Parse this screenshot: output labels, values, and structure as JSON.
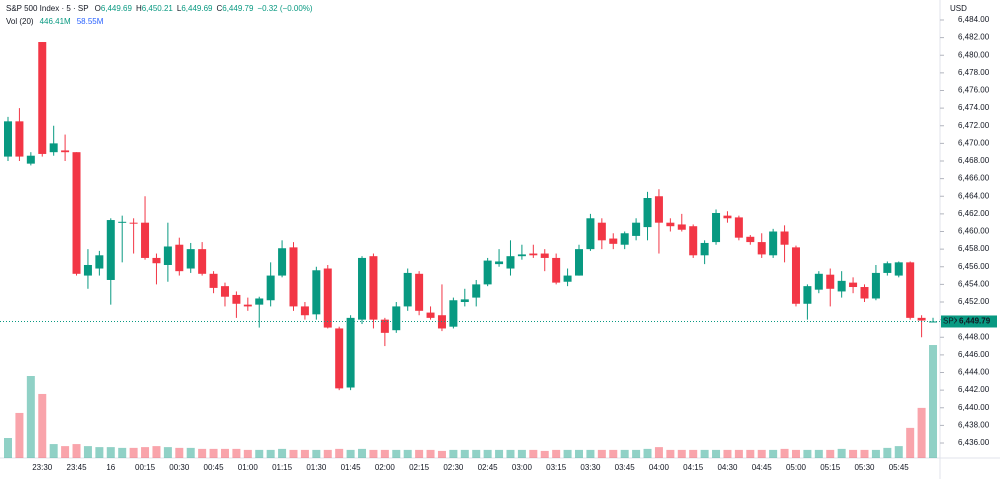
{
  "chart_data": {
    "type": "candlestick",
    "header": {
      "title": "S&P 500 Index · 5 · SP",
      "fields": [
        {
          "key": "O",
          "value": "6,449.69"
        },
        {
          "key": "H",
          "value": "6,450.21"
        },
        {
          "key": "L",
          "value": "6,449.69"
        },
        {
          "key": "C",
          "value": "6,449.79"
        }
      ],
      "change": "−0.32 (−0.00%)",
      "volume_label": "Vol (20)",
      "volume_values": [
        "446.41M",
        "58.55M"
      ]
    },
    "currency": "USD",
    "symbol_tag": "SPX",
    "last_price_label": "6,449.79",
    "up_color": "#089981",
    "down_color": "#f23645",
    "categories": [
      null,
      null,
      null,
      "23:30",
      null,
      null,
      "23:45",
      null,
      null,
      "16",
      null,
      null,
      "00:15",
      null,
      null,
      "00:30",
      null,
      null,
      "00:45",
      null,
      null,
      "01:00",
      null,
      null,
      "01:15",
      null,
      null,
      "01:30",
      null,
      null,
      "01:45",
      null,
      null,
      "02:00",
      null,
      null,
      "02:15",
      null,
      null,
      "02:30",
      null,
      null,
      "02:45",
      null,
      null,
      "03:00",
      null,
      null,
      "03:15",
      null,
      null,
      "03:30",
      null,
      null,
      "03:45",
      null,
      null,
      "04:00",
      null,
      null,
      "04:15",
      null,
      null,
      "04:30",
      null,
      null,
      "04:45",
      null,
      null,
      "05:00",
      null,
      null,
      "05:15",
      null,
      null,
      "05:30",
      null,
      null,
      "05:45",
      null,
      null,
      null
    ],
    "open": [
      6468.5,
      6472.5,
      6467.7,
      6481.5,
      6469,
      6469.2,
      6469,
      6455,
      6455.8,
      6454.5,
      6461,
      6461,
      6461,
      6457,
      6456.2,
      6458.5,
      6455.8,
      6458,
      6455.2,
      6453.8,
      6452.8,
      6451.7,
      6451.7,
      6452.2,
      6455,
      6458.2,
      6451.5,
      6450.6,
      6455.8,
      6449,
      6442.3,
      6450,
      6457.2,
      6450,
      6448.8,
      6451.5,
      6455.2,
      6450.8,
      6450.5,
      6449.2,
      6452,
      6452.5,
      6454,
      6456.3,
      6455.8,
      6457.2,
      6457.5,
      6457.5,
      6457,
      6454.3,
      6455,
      6458,
      6461,
      6459.2,
      6458.5,
      6459.5,
      6460.5,
      6464,
      6461,
      6460.8,
      6460.6,
      6457.3,
      6458.8,
      6461.8,
      6461.6,
      6459.4,
      6458.8,
      6457.3,
      6460,
      6458.2,
      6451.8,
      6453.4,
      6455.1,
      6453.2,
      6454.2,
      6453.7,
      6452.4,
      6455.3,
      6455,
      6456.5,
      6450.2,
      6449.7
    ],
    "high": [
      6473,
      6474,
      6469,
      6481.5,
      6472,
      6471,
      6469,
      6458,
      6457.8,
      6461.5,
      6461.8,
      6461.5,
      6464,
      6457.5,
      6461,
      6459.3,
      6458.7,
      6458.8,
      6455.5,
      6454.2,
      6453.2,
      6452.5,
      6452.6,
      6456.5,
      6459,
      6458.8,
      6452,
      6456,
      6456.2,
      6449.2,
      6450.5,
      6457.2,
      6457.5,
      6450.2,
      6452,
      6455.8,
      6455.5,
      6451.5,
      6454,
      6452.5,
      6453.5,
      6454.5,
      6457,
      6458,
      6459,
      6458.5,
      6458.5,
      6458,
      6457.5,
      6455.8,
      6458.5,
      6462,
      6461.5,
      6459.8,
      6460,
      6461.5,
      6464.5,
      6464.8,
      6461.5,
      6462,
      6460.8,
      6459,
      6462.5,
      6462.3,
      6461.8,
      6459.6,
      6459.8,
      6460.3,
      6460.7,
      6458.4,
      6454,
      6455.5,
      6455.8,
      6455.5,
      6454.8,
      6454,
      6456.2,
      6456.6,
      6456.6,
      6456.6,
      6450.5,
      6450.21
    ],
    "low": [
      6468,
      6468,
      6467.5,
      6468.5,
      6468.6,
      6468,
      6455,
      6453.5,
      6455,
      6451.7,
      6456.5,
      6457.5,
      6456.8,
      6454,
      6454.3,
      6455,
      6455.3,
      6455,
      6453,
      6451.5,
      6450.2,
      6451,
      6449.1,
      6451.5,
      6454.8,
      6451,
      6450,
      6450,
      6449,
      6442,
      6442,
      6449.5,
      6449,
      6447,
      6448.5,
      6451,
      6450.5,
      6450,
      6448.7,
      6449,
      6451.5,
      6451.5,
      6453.8,
      6456,
      6455,
      6456.8,
      6457,
      6455.5,
      6454,
      6453.8,
      6455,
      6457.8,
      6458,
      6458,
      6458,
      6459,
      6459,
      6457.5,
      6460,
      6460,
      6457,
      6456.3,
      6458.5,
      6461,
      6459,
      6458.5,
      6457,
      6457,
      6456.5,
      6451.5,
      6450,
      6453,
      6451.5,
      6452.5,
      6453,
      6452,
      6452.2,
      6455,
      6454.8,
      6450,
      6448,
      6449.69
    ],
    "close": [
      6472.5,
      6468.5,
      6468.6,
      6468.8,
      6470,
      6469,
      6455.2,
      6456.2,
      6457.3,
      6461.3,
      6461.1,
      6460.9,
      6457,
      6456.4,
      6458.3,
      6455.5,
      6458,
      6455.2,
      6453.6,
      6452.6,
      6451.8,
      6451.5,
      6452.4,
      6455,
      6458.1,
      6451.5,
      6450.5,
      6455.6,
      6449.1,
      6442.2,
      6450.2,
      6457,
      6450,
      6448.5,
      6451.5,
      6455.3,
      6451,
      6450.2,
      6449,
      6452.2,
      6452.3,
      6454,
      6456.7,
      6456.6,
      6457.2,
      6457.4,
      6457.3,
      6457,
      6454.2,
      6455,
      6458,
      6461.5,
      6459,
      6458.6,
      6459.8,
      6461,
      6463.8,
      6461,
      6460.6,
      6460.2,
      6457.3,
      6458.7,
      6462.1,
      6461.5,
      6459.3,
      6458.8,
      6457.4,
      6460,
      6458.5,
      6451.8,
      6453.8,
      6455.2,
      6453.5,
      6454.4,
      6453.7,
      6452.4,
      6455.3,
      6456.4,
      6456.5,
      6450.2,
      6449.9,
      6449.79
    ],
    "volume": [
      79,
      178,
      324,
      253,
      55,
      47,
      55,
      47,
      43,
      43,
      40,
      40,
      43,
      47,
      43,
      40,
      40,
      36,
      36,
      36,
      36,
      32,
      32,
      32,
      36,
      32,
      32,
      32,
      32,
      36,
      32,
      36,
      32,
      32,
      32,
      32,
      32,
      32,
      28,
      32,
      32,
      32,
      32,
      32,
      32,
      32,
      32,
      28,
      32,
      32,
      32,
      32,
      32,
      32,
      32,
      32,
      36,
      43,
      32,
      32,
      32,
      32,
      32,
      32,
      32,
      32,
      32,
      32,
      36,
      32,
      32,
      32,
      32,
      36,
      32,
      32,
      32,
      40,
      47,
      119,
      198,
      446.41
    ],
    "ylim": [
      6434.3,
      6485.36
    ],
    "volume_ylim": [
      0,
      1778
    ],
    "yticks": [
      {
        "value": 6436,
        "label": "6,436.00"
      },
      {
        "value": 6438,
        "label": "6,438.00"
      },
      {
        "value": 6440,
        "label": "6,440.00"
      },
      {
        "value": 6442,
        "label": "6,442.00"
      },
      {
        "value": 6444,
        "label": "6,444.00"
      },
      {
        "value": 6446,
        "label": "6,446.00"
      },
      {
        "value": 6448,
        "label": "6,448.00"
      },
      {
        "value": 6450,
        "label": "6,450.00"
      },
      {
        "value": 6452,
        "label": "6,452.00"
      },
      {
        "value": 6454,
        "label": "6,454.00"
      },
      {
        "value": 6456,
        "label": "6,456.00"
      },
      {
        "value": 6458,
        "label": "6,458.00"
      },
      {
        "value": 6460,
        "label": "6,460.00"
      },
      {
        "value": 6462,
        "label": "6,462.00"
      },
      {
        "value": 6464,
        "label": "6,464.00"
      },
      {
        "value": 6466,
        "label": "6,466.00"
      },
      {
        "value": 6468,
        "label": "6,468.00"
      },
      {
        "value": 6470,
        "label": "6,470.00"
      },
      {
        "value": 6472,
        "label": "6,472.00"
      },
      {
        "value": 6474,
        "label": "6,474.00"
      },
      {
        "value": 6476,
        "label": "6,476.00"
      },
      {
        "value": 6478,
        "label": "6,478.00"
      },
      {
        "value": 6480,
        "label": "6,480.00"
      },
      {
        "value": 6482,
        "label": "6,482.00"
      },
      {
        "value": 6484,
        "label": "6,484.00"
      }
    ]
  }
}
